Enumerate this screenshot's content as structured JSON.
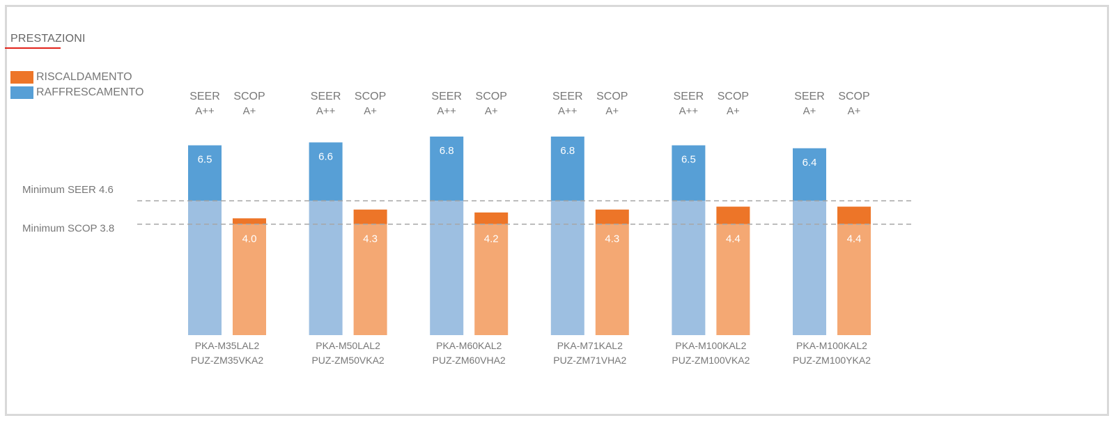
{
  "title": "PRESTAZIONI",
  "legend": [
    {
      "label": "RISCALDAMENTO",
      "color": "#ed7528"
    },
    {
      "label": "RAFFRESCAMENTO",
      "color": "#579fd6"
    }
  ],
  "colors": {
    "seer_top": "#579fd6",
    "seer_bottom": "#9dbfe1",
    "scop_top": "#ed7528",
    "scop_bottom": "#f4a873",
    "threshold_line": "#a6a6a6",
    "text_grey": "#777777"
  },
  "chart_data": {
    "type": "bar",
    "title": "PRESTAZIONI",
    "categories": [
      [
        "PKA-M35LAL2",
        "PUZ-ZM35VKA2"
      ],
      [
        "PKA-M50LAL2",
        "PUZ-ZM50VKA2"
      ],
      [
        "PKA-M60KAL2",
        "PUZ-ZM60VHA2"
      ],
      [
        "PKA-M71KAL2",
        "PUZ-ZM71VHA2"
      ],
      [
        "PKA-M100KAL2",
        "PUZ-ZM100VKA2"
      ],
      [
        "PKA-M100KAL2",
        "PUZ-ZM100YKA2"
      ]
    ],
    "series": [
      {
        "name": "RAFFRESCAMENTO",
        "metric": "SEER",
        "values": [
          6.5,
          6.6,
          6.8,
          6.8,
          6.5,
          6.4
        ],
        "classes": [
          "A++",
          "A++",
          "A++",
          "A++",
          "A++",
          "A+"
        ]
      },
      {
        "name": "RISCALDAMENTO",
        "metric": "SCOP",
        "values": [
          4.0,
          4.3,
          4.2,
          4.3,
          4.4,
          4.4
        ],
        "classes": [
          "A+",
          "A+",
          "A+",
          "A+",
          "A+",
          "A+"
        ]
      }
    ],
    "value_labels": {
      "SEER": [
        "6.5",
        "6.6",
        "6.8",
        "6.8",
        "6.5",
        "6.4"
      ],
      "SCOP": [
        "4.0",
        "4.3",
        "4.2",
        "4.3",
        "4.4",
        "4.4"
      ]
    },
    "thresholds": [
      {
        "label": "Minimum SEER 4.6",
        "value": 4.6,
        "applies_to": "SEER"
      },
      {
        "label": "Minimum SCOP 3.8",
        "value": 3.8,
        "applies_to": "SCOP"
      }
    ],
    "ylim": [
      0,
      6.8
    ],
    "xlabel": "",
    "ylabel": "",
    "grid": false,
    "legend_position": "top-left"
  }
}
